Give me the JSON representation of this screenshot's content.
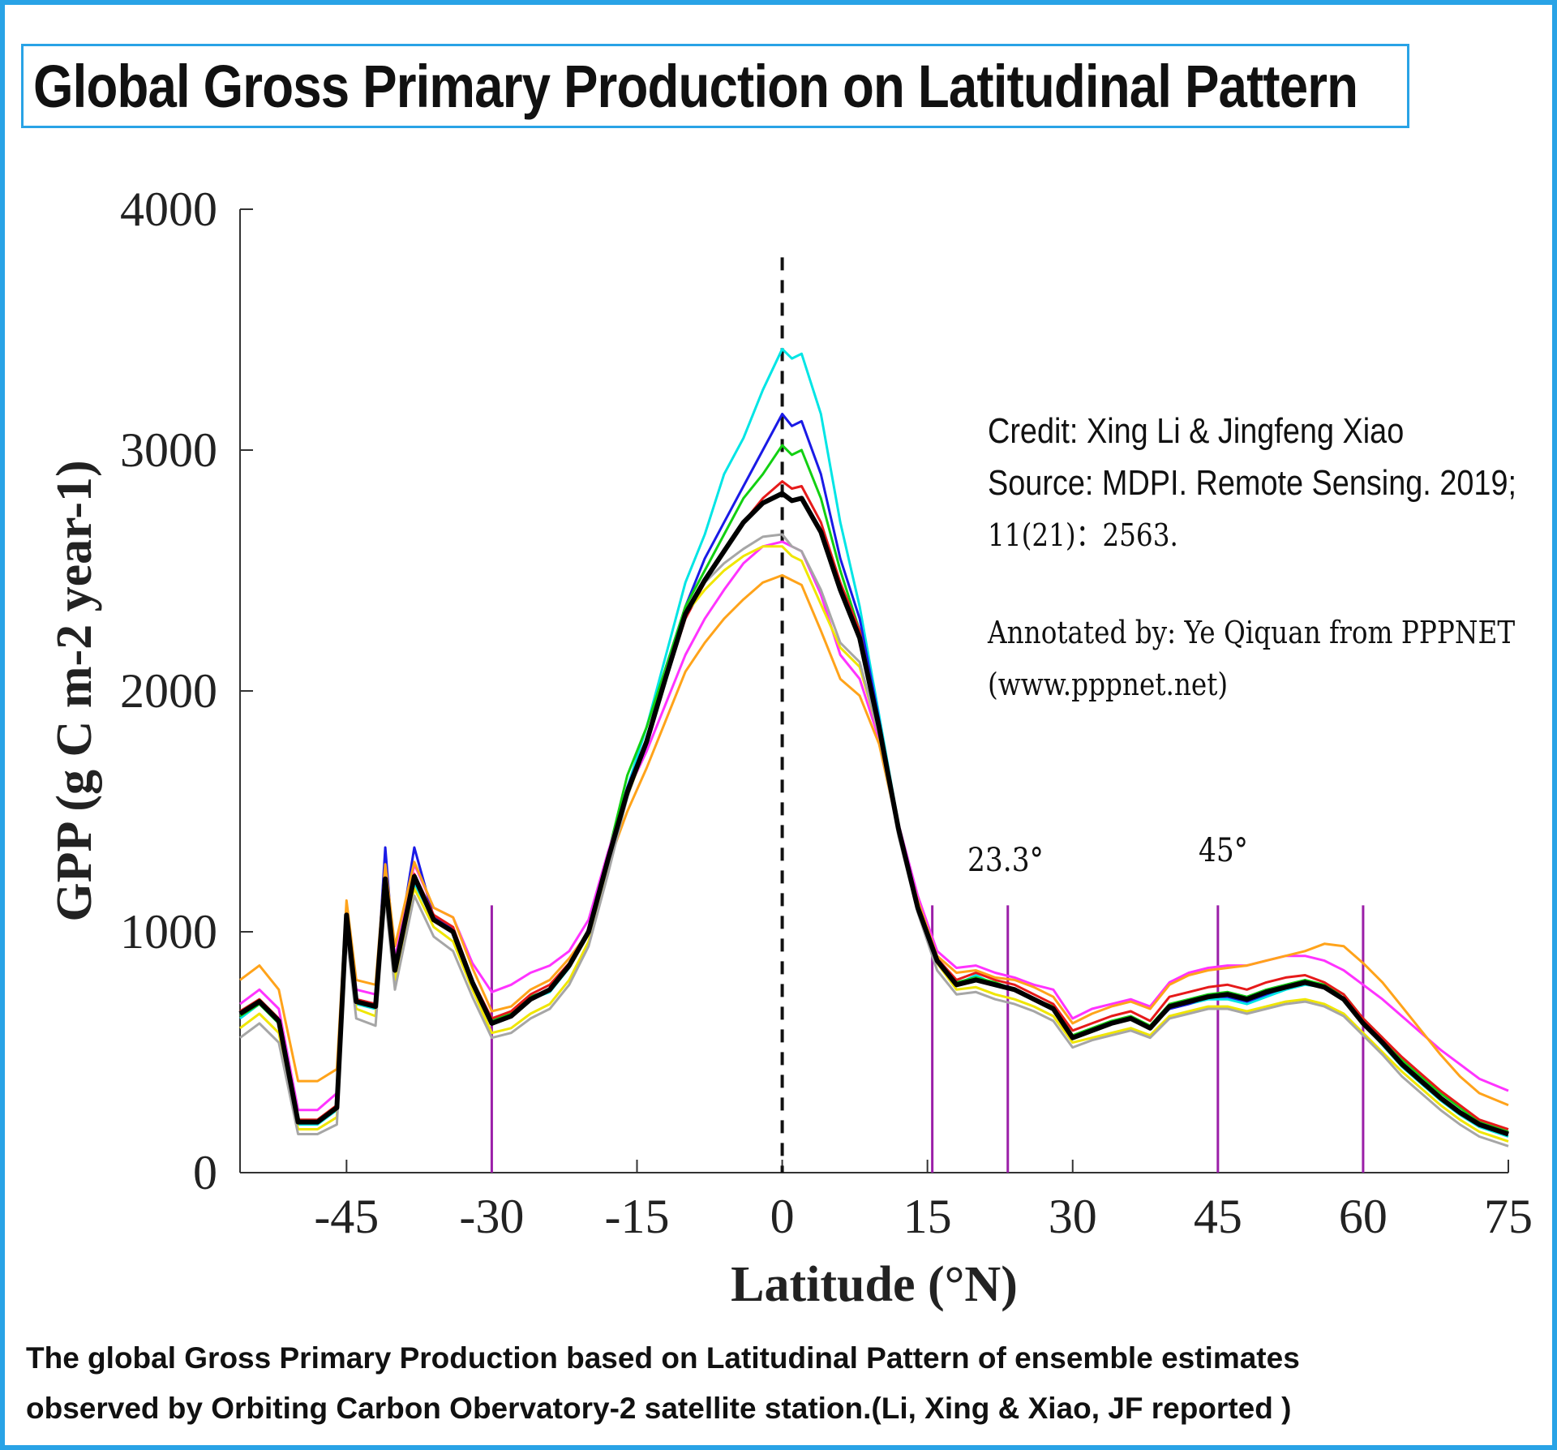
{
  "header": {
    "title": "Global Gross Primary Production on Latitudinal Pattern"
  },
  "credit": {
    "line1": "Credit: Xing Li & Jingfeng Xiao",
    "line2": "Source: MDPI. Remote Sensing. 2019;",
    "line3": "11(21)：2563."
  },
  "annotation": {
    "line1": "Annotated by: Ye Qiquan from PPPNET",
    "line2": "(www.pppnet.net)"
  },
  "markers": {
    "tropic_label": "23.3°",
    "mid_label": "45°"
  },
  "caption": {
    "line1": "The global Gross Primary Production based on Latitudinal Pattern of ensemble estimates",
    "line2": "observed by Orbiting Carbon Obervatory-2 satellite station.(Li, Xing & Xiao, JF reported )"
  },
  "colors": {
    "frame": "#29a3e6",
    "reference_lines": "#9b1fa8",
    "equator_line": "#111111"
  },
  "chart_data": {
    "type": "line",
    "title": "",
    "xlabel": "Latitude (°N)",
    "ylabel": "GPP (g C m-2 year-1)",
    "xlim": [
      -56,
      75
    ],
    "ylim": [
      0,
      4000
    ],
    "xticks": [
      -45,
      -30,
      -15,
      0,
      15,
      30,
      45,
      60,
      75
    ],
    "yticks": [
      0,
      1000,
      2000,
      3000,
      4000
    ],
    "reference_lines_x": [
      -30,
      15.5,
      23.3,
      45,
      60
    ],
    "equator_x": 0,
    "grid": false,
    "base_x": [
      -56,
      -54,
      -52,
      -50,
      -48,
      -46,
      -45,
      -44,
      -42,
      -41,
      -40,
      -38,
      -36,
      -34,
      -32,
      -30,
      -28,
      -26,
      -24,
      -22,
      -20,
      -18,
      -16,
      -14,
      -12,
      -10,
      -8,
      -6,
      -4,
      -2,
      0,
      1,
      2,
      4,
      6,
      8,
      10,
      12,
      14,
      16,
      18,
      20,
      22,
      24,
      26,
      28,
      30,
      32,
      34,
      36,
      38,
      40,
      42,
      44,
      46,
      48,
      50,
      52,
      54,
      56,
      58,
      60,
      62,
      64,
      66,
      68,
      70,
      72,
      75
    ],
    "series": [
      {
        "color": "#00e5e5",
        "values": [
          640,
          700,
          620,
          200,
          200,
          260,
          1050,
          700,
          680,
          1200,
          830,
          1200,
          1050,
          1000,
          780,
          620,
          650,
          720,
          750,
          850,
          1000,
          1300,
          1600,
          1850,
          2150,
          2450,
          2650,
          2900,
          3050,
          3250,
          3420,
          3380,
          3400,
          3150,
          2700,
          2350,
          1900,
          1450,
          1100,
          880,
          780,
          820,
          780,
          760,
          720,
          680,
          560,
          590,
          620,
          640,
          600,
          680,
          700,
          720,
          720,
          700,
          730,
          760,
          780,
          770,
          720,
          620,
          530,
          440,
          370,
          300,
          240,
          190,
          150
        ]
      },
      {
        "color": "#1a1ae6",
        "values": [
          660,
          710,
          630,
          210,
          210,
          270,
          1080,
          720,
          700,
          1350,
          850,
          1350,
          1060,
          1010,
          790,
          630,
          660,
          730,
          760,
          860,
          1010,
          1320,
          1600,
          1800,
          2100,
          2350,
          2550,
          2700,
          2850,
          3000,
          3150,
          3100,
          3120,
          2900,
          2550,
          2300,
          1880,
          1440,
          1100,
          880,
          790,
          810,
          780,
          760,
          720,
          680,
          560,
          590,
          620,
          640,
          600,
          680,
          700,
          730,
          730,
          710,
          740,
          770,
          790,
          770,
          720,
          620,
          540,
          450,
          380,
          310,
          250,
          200,
          160
        ]
      },
      {
        "color": "#12d012",
        "values": [
          650,
          700,
          620,
          210,
          210,
          265,
          1070,
          710,
          690,
          1220,
          840,
          1230,
          1050,
          1000,
          790,
          630,
          660,
          730,
          760,
          860,
          1010,
          1320,
          1650,
          1850,
          2100,
          2350,
          2500,
          2650,
          2800,
          2900,
          3020,
          2980,
          3000,
          2800,
          2500,
          2250,
          1860,
          1430,
          1100,
          880,
          790,
          810,
          790,
          760,
          720,
          690,
          570,
          600,
          630,
          650,
          610,
          700,
          720,
          740,
          750,
          730,
          760,
          780,
          800,
          780,
          740,
          640,
          560,
          470,
          400,
          330,
          270,
          210,
          170
        ]
      },
      {
        "color": "#e61a1a",
        "values": [
          670,
          720,
          640,
          220,
          220,
          280,
          1080,
          720,
          700,
          1230,
          860,
          1240,
          1070,
          1020,
          800,
          640,
          670,
          740,
          780,
          870,
          1010,
          1300,
          1580,
          1780,
          2050,
          2300,
          2450,
          2580,
          2700,
          2800,
          2870,
          2840,
          2850,
          2700,
          2450,
          2250,
          1860,
          1440,
          1110,
          890,
          800,
          830,
          800,
          780,
          740,
          700,
          590,
          620,
          650,
          670,
          630,
          730,
          750,
          770,
          780,
          760,
          790,
          810,
          820,
          790,
          740,
          640,
          560,
          480,
          410,
          340,
          280,
          220,
          180
        ]
      },
      {
        "color": "#ff33ff",
        "values": [
          700,
          760,
          680,
          260,
          260,
          330,
          1100,
          760,
          740,
          1260,
          890,
          1280,
          1100,
          1060,
          870,
          750,
          780,
          830,
          860,
          920,
          1050,
          1330,
          1580,
          1750,
          1950,
          2150,
          2300,
          2420,
          2530,
          2600,
          2620,
          2600,
          2580,
          2400,
          2150,
          2050,
          1800,
          1450,
          1150,
          920,
          850,
          860,
          830,
          810,
          780,
          760,
          640,
          680,
          700,
          720,
          690,
          790,
          830,
          850,
          860,
          860,
          880,
          900,
          900,
          880,
          840,
          780,
          720,
          650,
          580,
          510,
          450,
          390,
          340
        ]
      },
      {
        "color": "#ffa31a",
        "values": [
          800,
          860,
          760,
          380,
          380,
          430,
          1130,
          800,
          780,
          1280,
          940,
          1290,
          1100,
          1060,
          850,
          670,
          690,
          760,
          800,
          890,
          1000,
          1280,
          1500,
          1680,
          1880,
          2080,
          2200,
          2300,
          2380,
          2450,
          2480,
          2460,
          2440,
          2250,
          2050,
          1980,
          1780,
          1420,
          1130,
          900,
          830,
          840,
          810,
          800,
          770,
          730,
          620,
          660,
          690,
          710,
          680,
          780,
          820,
          840,
          850,
          860,
          880,
          900,
          920,
          950,
          940,
          870,
          790,
          690,
          590,
          490,
          400,
          330,
          280
        ]
      },
      {
        "color": "#f0e600",
        "values": [
          600,
          660,
          580,
          180,
          180,
          230,
          1030,
          680,
          650,
          1180,
          800,
          1180,
          1020,
          960,
          760,
          580,
          600,
          660,
          700,
          800,
          960,
          1260,
          1560,
          1780,
          2050,
          2320,
          2420,
          2500,
          2560,
          2600,
          2600,
          2560,
          2540,
          2360,
          2180,
          2100,
          1820,
          1420,
          1100,
          870,
          760,
          770,
          740,
          720,
          690,
          650,
          540,
          560,
          580,
          600,
          570,
          650,
          670,
          690,
          690,
          670,
          690,
          710,
          720,
          700,
          660,
          580,
          500,
          420,
          350,
          280,
          220,
          170,
          130
        ]
      },
      {
        "color": "#a6a6a6",
        "values": [
          560,
          620,
          540,
          160,
          160,
          200,
          990,
          640,
          610,
          1140,
          760,
          1150,
          980,
          920,
          730,
          560,
          580,
          640,
          680,
          780,
          940,
          1240,
          1560,
          1790,
          2080,
          2330,
          2450,
          2530,
          2590,
          2640,
          2650,
          2600,
          2580,
          2420,
          2200,
          2120,
          1820,
          1400,
          1080,
          840,
          740,
          750,
          720,
          700,
          670,
          630,
          520,
          550,
          570,
          590,
          560,
          640,
          660,
          680,
          680,
          660,
          680,
          700,
          710,
          690,
          650,
          570,
          490,
          400,
          330,
          260,
          200,
          150,
          110
        ]
      },
      {
        "color": "#000000",
        "width": 6,
        "values": [
          660,
          710,
          630,
          210,
          210,
          270,
          1070,
          710,
          690,
          1220,
          840,
          1230,
          1050,
          1000,
          790,
          620,
          650,
          720,
          760,
          860,
          1000,
          1300,
          1580,
          1790,
          2060,
          2320,
          2460,
          2580,
          2700,
          2780,
          2820,
          2790,
          2800,
          2660,
          2420,
          2220,
          1850,
          1430,
          1100,
          880,
          780,
          800,
          780,
          760,
          720,
          680,
          560,
          590,
          620,
          640,
          600,
          690,
          710,
          730,
          740,
          720,
          750,
          770,
          790,
          770,
          720,
          620,
          540,
          450,
          380,
          310,
          250,
          200,
          160
        ]
      }
    ]
  }
}
